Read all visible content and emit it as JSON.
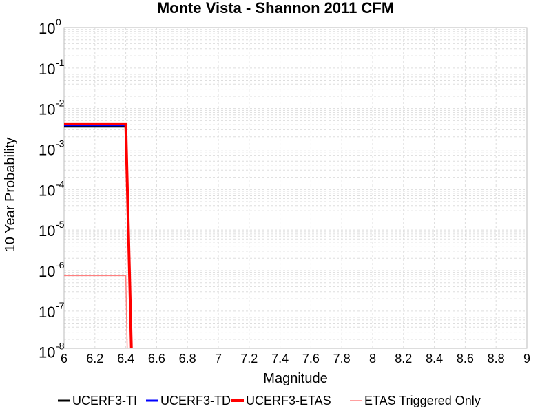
{
  "chart_data": {
    "type": "line",
    "title": "Monte Vista - Shannon 2011 CFM",
    "xlabel": "Magnitude",
    "ylabel": "10 Year Probability",
    "xlim": [
      6,
      9
    ],
    "ylim": [
      1.2e-08,
      1
    ],
    "yscale": "log",
    "grid": true,
    "legend_position": "bottom",
    "x_ticks": [
      "6",
      "6.2",
      "6.4",
      "6.6",
      "6.8",
      "7",
      "7.2",
      "7.4",
      "7.6",
      "7.8",
      "8",
      "8.2",
      "8.4",
      "8.6",
      "8.8",
      "9"
    ],
    "y_ticks": [
      {
        "base": "10",
        "exp": "0"
      },
      {
        "base": "10",
        "exp": "-1"
      },
      {
        "base": "10",
        "exp": "-2"
      },
      {
        "base": "10",
        "exp": "-3"
      },
      {
        "base": "10",
        "exp": "-4"
      },
      {
        "base": "10",
        "exp": "-5"
      },
      {
        "base": "10",
        "exp": "-6"
      },
      {
        "base": "10",
        "exp": "-7"
      },
      {
        "base": "10",
        "exp": "-8"
      }
    ],
    "series": [
      {
        "name": "UCERF3-TI",
        "color": "#000000",
        "width": 3,
        "x": [
          6.0,
          6.4,
          6.45
        ],
        "y": [
          0.0036,
          0.0036,
          1e-10
        ]
      },
      {
        "name": "UCERF3-TD",
        "color": "#0000ff",
        "width": 3,
        "x": [
          6.0,
          6.4,
          6.45
        ],
        "y": [
          0.0039,
          0.0039,
          1e-10
        ]
      },
      {
        "name": "UCERF3-ETAS",
        "color": "#ff0000",
        "width": 4,
        "x": [
          6.0,
          6.4,
          6.45
        ],
        "y": [
          0.0042,
          0.0042,
          1e-10
        ]
      },
      {
        "name": "ETAS Triggered Only",
        "color": "#ff8080",
        "width": 1.5,
        "x": [
          6.0,
          6.4,
          6.42
        ],
        "y": [
          7.5e-07,
          7.5e-07,
          1e-10
        ]
      }
    ]
  }
}
